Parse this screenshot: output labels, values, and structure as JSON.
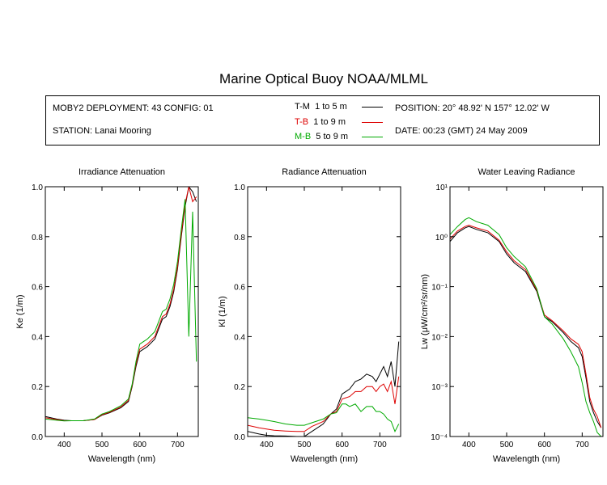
{
  "page": {
    "title": "Marine Optical Buoy NOAA/MLML"
  },
  "info": {
    "deployment": "MOBY2 DEPLOYMENT: 43 CONFIG: 01",
    "station": "STATION: Lanai Mooring",
    "position": "POSITION: 20° 48.92' N   157° 12.02' W",
    "date": "DATE: 00:23 (GMT) 24 May 2009"
  },
  "legend": [
    {
      "code": "T-M",
      "range": "1 to 5  m",
      "color": "#000000"
    },
    {
      "code": "T-B",
      "range": "1 to 9  m",
      "color": "#dd0000"
    },
    {
      "code": "M-B",
      "range": "5 to 9  m",
      "color": "#00aa00"
    }
  ],
  "chart_data": [
    {
      "type": "line",
      "title": "Irradiance Attenuation",
      "xlabel": "Wavelength (nm)",
      "ylabel": "Ke  (1/m)",
      "xlim": [
        350,
        755
      ],
      "ylim": [
        0,
        1.0
      ],
      "xticks": [
        "400",
        "500",
        "600",
        "700"
      ],
      "yticks": [
        "0.0",
        "0.2",
        "0.4",
        "0.6",
        "0.8",
        "1.0"
      ],
      "x": [
        350,
        380,
        400,
        420,
        450,
        480,
        500,
        520,
        550,
        570,
        580,
        590,
        600,
        610,
        620,
        640,
        650,
        660,
        670,
        680,
        690,
        700,
        710,
        720,
        730,
        740,
        750
      ],
      "series": [
        {
          "name": "T-M",
          "color": "#000000",
          "values": [
            0.08,
            0.07,
            0.065,
            0.063,
            0.063,
            0.068,
            0.085,
            0.095,
            0.115,
            0.14,
            0.2,
            0.28,
            0.34,
            0.35,
            0.36,
            0.39,
            0.43,
            0.47,
            0.48,
            0.52,
            0.58,
            0.67,
            0.8,
            0.92,
            1.0,
            0.98,
            0.94
          ]
        },
        {
          "name": "T-B",
          "color": "#dd0000",
          "values": [
            0.075,
            0.068,
            0.063,
            0.063,
            0.063,
            0.068,
            0.087,
            0.097,
            0.118,
            0.145,
            0.205,
            0.29,
            0.35,
            0.36,
            0.37,
            0.4,
            0.44,
            0.48,
            0.49,
            0.53,
            0.59,
            0.68,
            0.81,
            0.93,
            1.0,
            0.94,
            0.96
          ]
        },
        {
          "name": "M-B",
          "color": "#00aa00",
          "values": [
            0.07,
            0.065,
            0.062,
            0.063,
            0.063,
            0.07,
            0.09,
            0.1,
            0.123,
            0.15,
            0.21,
            0.3,
            0.37,
            0.38,
            0.39,
            0.42,
            0.46,
            0.5,
            0.51,
            0.55,
            0.61,
            0.7,
            0.83,
            0.95,
            0.4,
            0.9,
            0.3
          ]
        }
      ]
    },
    {
      "type": "line",
      "title": "Radiance Attenuation",
      "xlabel": "Wavelength (nm)",
      "ylabel": "Kl  (1/m)",
      "xlim": [
        350,
        755
      ],
      "ylim": [
        0,
        1.0
      ],
      "xticks": [
        "400",
        "500",
        "600",
        "700"
      ],
      "yticks": [
        "0.0",
        "0.2",
        "0.4",
        "0.6",
        "0.8",
        "1.0"
      ],
      "x": [
        350,
        380,
        400,
        420,
        450,
        480,
        500,
        520,
        550,
        570,
        585,
        600,
        610,
        620,
        635,
        650,
        665,
        680,
        690,
        700,
        710,
        720,
        730,
        740,
        750
      ],
      "series": [
        {
          "name": "T-M",
          "color": "#000000",
          "values": [
            0.02,
            0.01,
            0.005,
            0.003,
            0.002,
            0.0,
            0.0,
            0.02,
            0.05,
            0.09,
            0.11,
            0.17,
            0.18,
            0.19,
            0.22,
            0.23,
            0.25,
            0.24,
            0.22,
            0.25,
            0.28,
            0.24,
            0.3,
            0.2,
            0.38
          ]
        },
        {
          "name": "T-B",
          "color": "#dd0000",
          "values": [
            0.045,
            0.035,
            0.03,
            0.025,
            0.022,
            0.02,
            0.02,
            0.04,
            0.06,
            0.09,
            0.1,
            0.15,
            0.155,
            0.16,
            0.18,
            0.18,
            0.2,
            0.2,
            0.18,
            0.2,
            0.21,
            0.18,
            0.22,
            0.13,
            0.24
          ]
        },
        {
          "name": "M-B",
          "color": "#00aa00",
          "values": [
            0.075,
            0.07,
            0.065,
            0.06,
            0.05,
            0.045,
            0.045,
            0.055,
            0.07,
            0.09,
            0.095,
            0.13,
            0.13,
            0.12,
            0.13,
            0.1,
            0.12,
            0.12,
            0.1,
            0.1,
            0.09,
            0.07,
            0.06,
            0.02,
            0.05
          ]
        }
      ]
    },
    {
      "type": "line",
      "title": "Water Leaving Radiance",
      "xlabel": "Wavelength (nm)",
      "ylabel": "Lw  (μW/cm²/sr/nm)",
      "yscale": "log",
      "xlim": [
        350,
        755
      ],
      "ylim": [
        0.0001,
        10
      ],
      "xticks": [
        "400",
        "500",
        "600",
        "700"
      ],
      "yticks": [
        "10⁰",
        "10¹",
        "10⁻¹",
        "10⁻²",
        "10⁻³",
        "10⁻⁴"
      ],
      "x": [
        350,
        370,
        390,
        400,
        420,
        450,
        480,
        500,
        520,
        550,
        580,
        600,
        620,
        650,
        670,
        690,
        700,
        710,
        720,
        730,
        740,
        750
      ],
      "series": [
        {
          "name": "T-M",
          "color": "#000000",
          "values": [
            0.8,
            1.2,
            1.5,
            1.6,
            1.4,
            1.2,
            0.8,
            0.45,
            0.3,
            0.2,
            0.08,
            0.025,
            0.02,
            0.012,
            0.008,
            0.006,
            0.004,
            0.0015,
            0.0005,
            0.0003,
            0.0002,
            0.00015
          ]
        },
        {
          "name": "T-B",
          "color": "#dd0000",
          "values": [
            0.9,
            1.3,
            1.6,
            1.7,
            1.5,
            1.3,
            0.85,
            0.5,
            0.33,
            0.22,
            0.085,
            0.027,
            0.021,
            0.013,
            0.009,
            0.007,
            0.005,
            0.0018,
            0.0006,
            0.00035,
            0.00025,
            0.00015
          ]
        },
        {
          "name": "M-B",
          "color": "#00aa00",
          "values": [
            1.1,
            1.6,
            2.2,
            2.4,
            2.0,
            1.7,
            1.1,
            0.6,
            0.4,
            0.25,
            0.09,
            0.025,
            0.018,
            0.009,
            0.005,
            0.0025,
            0.0012,
            0.0005,
            0.0003,
            0.0002,
            0.00012,
            0.0001
          ]
        }
      ]
    }
  ]
}
